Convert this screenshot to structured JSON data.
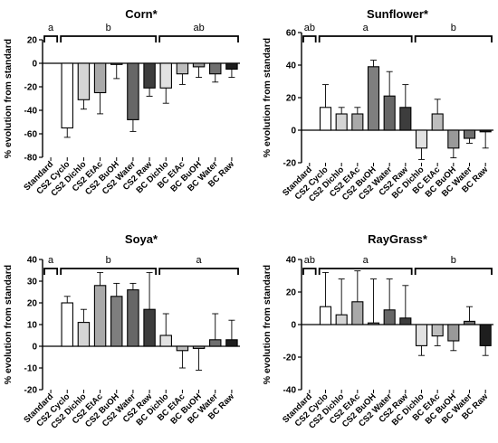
{
  "chart_data": [
    {
      "type": "bar",
      "title": "Corn*",
      "ylabel": "% evolution from standard",
      "xlabel": "",
      "ylim": [
        -80,
        20
      ],
      "yticks": [
        -80,
        -60,
        -40,
        -20,
        0,
        20
      ],
      "categories": [
        "Standard",
        "CS2 Cyclo",
        "CS2 Dichlo",
        "CS2 EtAc",
        "CS2 BuOH",
        "CS2 Water",
        "CS2 Raw",
        "BC Dichlo",
        "BC EtAc",
        "BC BuOH",
        "BC Water",
        "BC Raw"
      ],
      "values": [
        0,
        -55,
        -31,
        -25,
        -1,
        -48,
        -21,
        -21,
        -9,
        -3,
        -9,
        -5
      ],
      "errors": [
        0,
        8,
        8,
        18,
        12,
        10,
        7,
        13,
        9,
        9,
        7,
        7
      ],
      "groups": [
        {
          "label": "a",
          "from": 0,
          "to": 0
        },
        {
          "label": "b",
          "from": 1,
          "to": 6
        },
        {
          "label": "ab",
          "from": 7,
          "to": 11
        }
      ]
    },
    {
      "type": "bar",
      "title": "Sunflower*",
      "ylabel": "% evolution from standard",
      "xlabel": "",
      "ylim": [
        -20,
        60
      ],
      "yticks": [
        -20,
        0,
        20,
        40,
        60
      ],
      "categories": [
        "Standard",
        "CS2 Cyclo",
        "CS2 Dichlo",
        "CS2 EtAc",
        "CS2 BuOH",
        "CS2 Water",
        "CS2 Raw",
        "BC Dichlo",
        "BC EtAc",
        "BC BuOH",
        "BC Water",
        "BC Raw"
      ],
      "values": [
        0,
        14,
        10,
        10,
        39,
        21,
        14,
        -11,
        10,
        -11,
        -5,
        -1
      ],
      "errors": [
        0,
        14,
        4,
        4,
        4,
        15,
        14,
        7,
        9,
        6,
        3,
        10
      ],
      "groups": [
        {
          "label": "ab",
          "from": 0,
          "to": 0
        },
        {
          "label": "a",
          "from": 1,
          "to": 6
        },
        {
          "label": "b",
          "from": 7,
          "to": 11
        }
      ]
    },
    {
      "type": "bar",
      "title": "Soya*",
      "ylabel": "% evolution from standard",
      "xlabel": "",
      "ylim": [
        -20,
        40
      ],
      "yticks": [
        -20,
        -10,
        0,
        10,
        20,
        30,
        40
      ],
      "categories": [
        "Standard",
        "CS2 Cyclo",
        "CS2 Dichlo",
        "CS2 EtAc",
        "CS2 BuOH",
        "CS2 Water",
        "CS2 Raw",
        "BC Dichlo",
        "BC EtAc",
        "BC BuOH",
        "BC Water",
        "BC Raw"
      ],
      "values": [
        0,
        20,
        11,
        28,
        23,
        26,
        17,
        5,
        -2,
        -1,
        3,
        3
      ],
      "errors": [
        0,
        3,
        6,
        6,
        6,
        3,
        17,
        10,
        8,
        10,
        12,
        9
      ],
      "groups": [
        {
          "label": "a",
          "from": 0,
          "to": 0
        },
        {
          "label": "b",
          "from": 1,
          "to": 6
        },
        {
          "label": "a",
          "from": 7,
          "to": 11
        }
      ]
    },
    {
      "type": "bar",
      "title": "RayGrass*",
      "ylabel": "% evolution from standard",
      "xlabel": "",
      "ylim": [
        -40,
        40
      ],
      "yticks": [
        -40,
        -20,
        0,
        20,
        40
      ],
      "categories": [
        "Standard",
        "CS2 Cyclo",
        "CS2 Dichlo",
        "CS2 EtAc",
        "CS2 BuOH",
        "CS2 Water",
        "CS2 Raw",
        "BC Dichlo",
        "BC EtAc",
        "BC BuOH",
        "BC Water",
        "BC Raw"
      ],
      "values": [
        0,
        11,
        6,
        14,
        1,
        9,
        4,
        -13,
        -7,
        -10,
        2,
        -13
      ],
      "errors": [
        0,
        21,
        22,
        19,
        27,
        19,
        20,
        6,
        6,
        6,
        9,
        6
      ],
      "groups": [
        {
          "label": "ab",
          "from": 0,
          "to": 0
        },
        {
          "label": "a",
          "from": 1,
          "to": 6
        },
        {
          "label": "b",
          "from": 7,
          "to": 11
        }
      ]
    }
  ],
  "colors": {
    "bar_fills": [
      "#ffffff",
      "#ffffff",
      "#d4d4d4",
      "#a9a9a9",
      "#7e7e7e",
      "#676767",
      "#3d3d3d",
      "#e2e2e2",
      "#bdbdbd",
      "#999999",
      "#6f6f6f",
      "#1e1e1e"
    ],
    "stroke": "#000000"
  }
}
